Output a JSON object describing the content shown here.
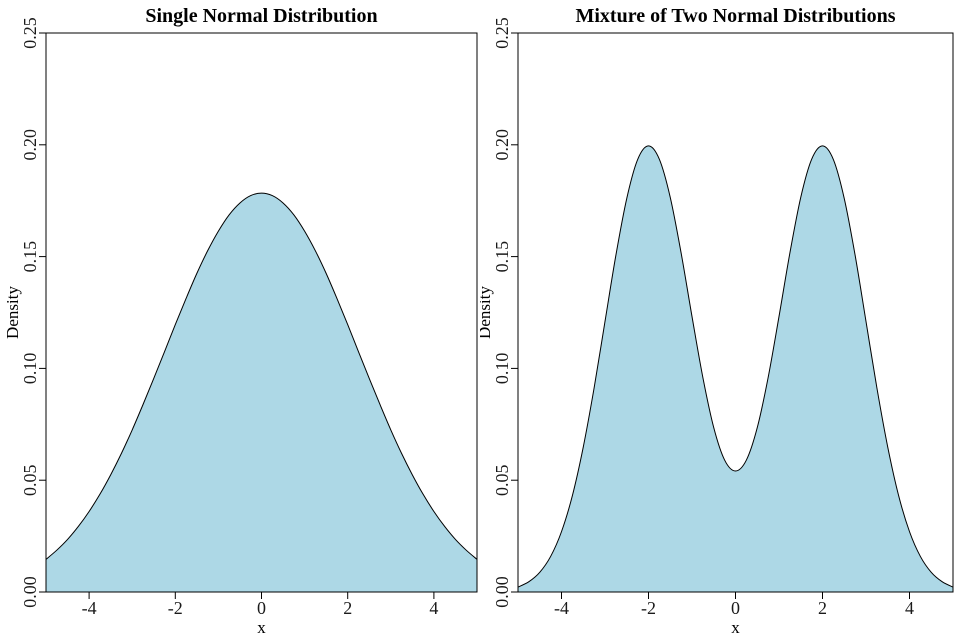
{
  "figure": {
    "background": "#ffffff",
    "area_fill_color": "#ADD8E6",
    "line_color": "#000000"
  },
  "chart_data": [
    {
      "type": "area",
      "title": "Single Normal Distribution",
      "xlabel": "x",
      "ylabel": "Density",
      "xlim": [
        -5,
        5
      ],
      "ylim": [
        0,
        0.25
      ],
      "grid": false,
      "legend": null,
      "fill": "#ADD8E6",
      "stroke": "#000000",
      "xticks": [
        -4,
        -2,
        0,
        2,
        4
      ],
      "xtick_labels": [
        "-4",
        "-2",
        "0",
        "2",
        "4"
      ],
      "yticks": [
        0,
        0.05,
        0.1,
        0.15,
        0.2,
        0.25
      ],
      "ytick_labels": [
        "0.00",
        "0.05",
        "0.10",
        "0.15",
        "0.20",
        "0.25"
      ],
      "peak_density": 0.178,
      "x": [
        -5,
        -4.75,
        -4.5,
        -4.25,
        -4,
        -3.75,
        -3.5,
        -3.25,
        -3,
        -2.75,
        -2.5,
        -2.25,
        -2,
        -1.75,
        -1.5,
        -1.25,
        -1,
        -0.75,
        -0.5,
        -0.25,
        0,
        0.25,
        0.5,
        0.75,
        1,
        1.25,
        1.5,
        1.75,
        2,
        2.25,
        2.5,
        2.75,
        3,
        3.25,
        3.5,
        3.75,
        4,
        4.25,
        4.5,
        4.75,
        5
      ],
      "y": [
        0.0146,
        0.0187,
        0.0235,
        0.0293,
        0.036,
        0.0437,
        0.0524,
        0.062,
        0.0725,
        0.0838,
        0.0955,
        0.1075,
        0.1196,
        0.1313,
        0.1425,
        0.1526,
        0.1614,
        0.1687,
        0.174,
        0.1773,
        0.1784,
        0.1773,
        0.174,
        0.1687,
        0.1614,
        0.1526,
        0.1425,
        0.1313,
        0.1196,
        0.1075,
        0.0955,
        0.0838,
        0.0725,
        0.062,
        0.0524,
        0.0437,
        0.036,
        0.0293,
        0.0235,
        0.0187,
        0.0146
      ]
    },
    {
      "type": "area",
      "title": "Mixture of Two Normal Distributions",
      "xlabel": "x",
      "ylabel": "Density",
      "xlim": [
        -5,
        5
      ],
      "ylim": [
        0,
        0.25
      ],
      "grid": false,
      "legend": null,
      "fill": "#ADD8E6",
      "stroke": "#000000",
      "xticks": [
        -4,
        -2,
        0,
        2,
        4
      ],
      "xtick_labels": [
        "-4",
        "-2",
        "0",
        "2",
        "4"
      ],
      "yticks": [
        0,
        0.05,
        0.1,
        0.15,
        0.2,
        0.25
      ],
      "ytick_labels": [
        "0.00",
        "0.05",
        "0.10",
        "0.15",
        "0.20",
        "0.25"
      ],
      "peak_density": 0.199,
      "valley_density": 0.054,
      "x": [
        -5,
        -4.75,
        -4.5,
        -4.25,
        -4,
        -3.75,
        -3.5,
        -3.25,
        -3,
        -2.75,
        -2.5,
        -2.25,
        -2,
        -1.75,
        -1.5,
        -1.25,
        -1,
        -0.75,
        -0.5,
        -0.25,
        0,
        0.25,
        0.5,
        0.75,
        1,
        1.25,
        1.5,
        1.75,
        2,
        2.25,
        2.5,
        2.75,
        3,
        3.25,
        3.5,
        3.75,
        4,
        4.25,
        4.5,
        4.75,
        5
      ],
      "y": [
        0.0022,
        0.0046,
        0.0088,
        0.0159,
        0.027,
        0.0431,
        0.0648,
        0.0913,
        0.121,
        0.1506,
        0.176,
        0.1934,
        0.1995,
        0.1935,
        0.1765,
        0.1516,
        0.1232,
        0.0959,
        0.0735,
        0.059,
        0.0541,
        0.059,
        0.0735,
        0.0959,
        0.1232,
        0.1516,
        0.1765,
        0.1935,
        0.1995,
        0.1934,
        0.176,
        0.1506,
        0.121,
        0.0913,
        0.0648,
        0.0431,
        0.027,
        0.0159,
        0.0088,
        0.0046,
        0.0022
      ]
    }
  ]
}
